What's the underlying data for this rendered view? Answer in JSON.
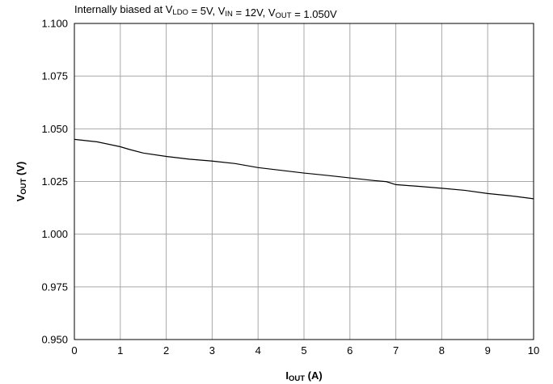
{
  "chart_data": {
    "type": "line",
    "title": {
      "parts": [
        {
          "t": "Internally biased at V"
        },
        {
          "t": "LDO",
          "sub": true
        },
        {
          "t": " = 5V, V"
        },
        {
          "t": "IN",
          "sub": true
        },
        {
          "t": " = 12V, V"
        },
        {
          "t": "OUT",
          "sub": true
        },
        {
          "t": " = 1.050V"
        }
      ]
    },
    "xlabel": {
      "main": "I",
      "sub": "OUT",
      "rest": " (A)"
    },
    "ylabel": {
      "main": "V",
      "sub": "OUT",
      "rest": " (V)"
    },
    "xlim": [
      0,
      10
    ],
    "ylim": [
      0.95,
      1.1
    ],
    "x_ticks": [
      0,
      1,
      2,
      3,
      4,
      5,
      6,
      7,
      8,
      9,
      10
    ],
    "y_ticks": [
      0.95,
      0.975,
      1.0,
      1.025,
      1.05,
      1.075,
      1.1
    ],
    "y_tick_labels": [
      "0.950",
      "0.975",
      "1.000",
      "1.025",
      "1.050",
      "1.075",
      "1.100"
    ],
    "grid": true,
    "series": [
      {
        "x": [
          0,
          0.5,
          1.0,
          1.2,
          1.5,
          2.0,
          2.5,
          3.0,
          3.5,
          4.0,
          4.5,
          5.0,
          5.5,
          6.0,
          6.5,
          6.8,
          7.0,
          7.5,
          8.0,
          8.5,
          9.0,
          9.5,
          10.0
        ],
        "y": [
          1.045,
          1.0438,
          1.0415,
          1.0402,
          1.0385,
          1.0369,
          1.0356,
          1.0347,
          1.0335,
          1.0316,
          1.0303,
          1.029,
          1.0279,
          1.0267,
          1.0255,
          1.0249,
          1.0235,
          1.0227,
          1.0218,
          1.0208,
          1.0193,
          1.0182,
          1.0168
        ]
      }
    ]
  }
}
